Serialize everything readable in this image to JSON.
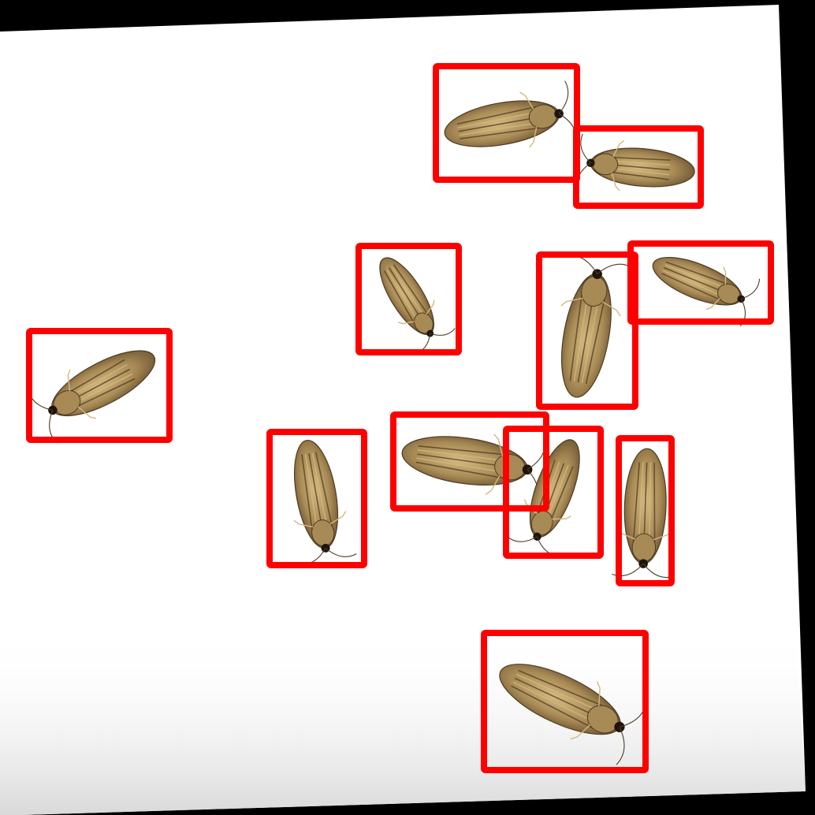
{
  "image": {
    "subject": "moths",
    "specimen_count": 11,
    "annotation": "bounding-box",
    "background": "#ffffff",
    "border": "#000000",
    "box_color": "#ff0000",
    "moth_colors": {
      "base": "#a78a55",
      "light": "#d4b87f",
      "dark": "#4e3b22",
      "head": "#1e140b"
    }
  }
}
